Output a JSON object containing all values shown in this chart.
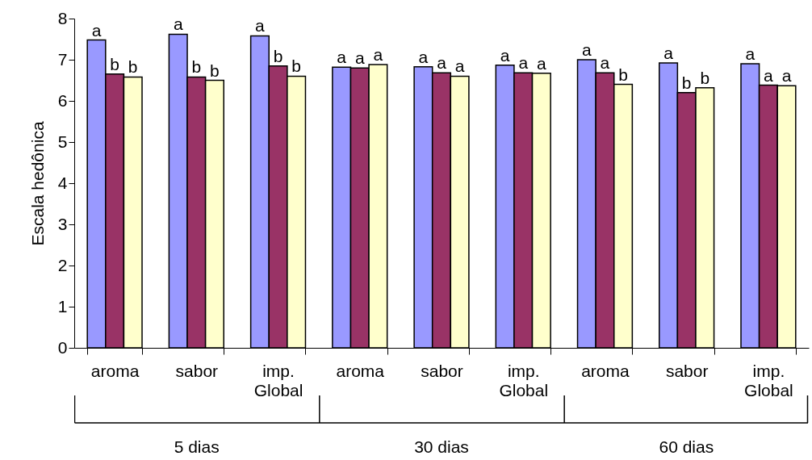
{
  "chart_data": {
    "type": "bar",
    "ylabel": "Escala hedônica",
    "categories": [
      "aroma",
      "sabor",
      "imp. Global",
      "aroma",
      "sabor",
      "imp. Global",
      "aroma",
      "sabor",
      "imp. Global"
    ],
    "series": [
      {
        "color": "#9999ff",
        "values": [
          7.48,
          7.62,
          7.58,
          6.82,
          6.83,
          6.87,
          7.0,
          6.92,
          6.9
        ],
        "value_labels": [
          "a",
          "a",
          "a",
          "a",
          "a",
          "a",
          "a",
          "a",
          "a"
        ]
      },
      {
        "color": "#993366",
        "values": [
          6.65,
          6.58,
          6.85,
          6.8,
          6.68,
          6.68,
          6.68,
          6.2,
          6.38
        ],
        "value_labels": [
          "b",
          "b",
          "b",
          "a",
          "a",
          "a",
          "a",
          "b",
          "a"
        ]
      },
      {
        "color": "#ffffcc",
        "values": [
          6.58,
          6.5,
          6.6,
          6.88,
          6.6,
          6.67,
          6.4,
          6.32,
          6.37
        ],
        "value_labels": [
          "b",
          "b",
          "b",
          "a",
          "a",
          "a",
          "b",
          "b",
          "a"
        ]
      }
    ],
    "annotations": [
      "5 dias",
      "30 dias",
      "60 dias"
    ],
    "ylim": [
      0,
      8
    ],
    "yticks": [
      0,
      1,
      2,
      3,
      4,
      5,
      6,
      7,
      8
    ],
    "grid": false,
    "legend": false
  }
}
